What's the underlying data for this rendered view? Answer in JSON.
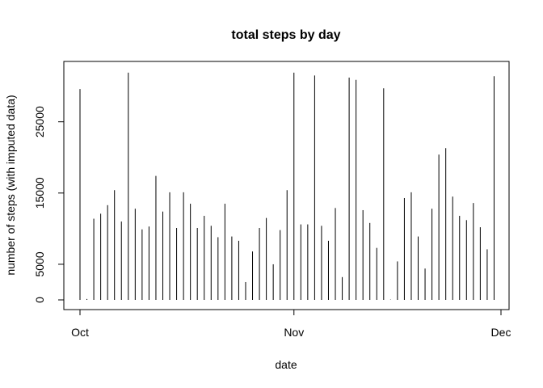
{
  "chart_data": {
    "type": "bar",
    "style": "histogram-spikes",
    "title": "total steps by day",
    "xlabel": "date",
    "ylabel": "number of steps (with imputed data)",
    "x_ticks": [
      "Oct",
      "Nov",
      "Dec"
    ],
    "x_tick_dates": [
      "2012-10-01",
      "2012-11-01",
      "2012-12-01"
    ],
    "y_ticks": [
      0,
      5000,
      15000,
      25000
    ],
    "ylim": [
      0,
      32000
    ],
    "xlim": [
      "2012-09-29",
      "2012-12-01"
    ],
    "box": true,
    "grid": false,
    "dates": [
      "2012-10-01",
      "2012-10-02",
      "2012-10-03",
      "2012-10-04",
      "2012-10-05",
      "2012-10-06",
      "2012-10-07",
      "2012-10-08",
      "2012-10-09",
      "2012-10-10",
      "2012-10-11",
      "2012-10-12",
      "2012-10-13",
      "2012-10-14",
      "2012-10-15",
      "2012-10-16",
      "2012-10-17",
      "2012-10-18",
      "2012-10-19",
      "2012-10-20",
      "2012-10-21",
      "2012-10-22",
      "2012-10-23",
      "2012-10-24",
      "2012-10-25",
      "2012-10-26",
      "2012-10-27",
      "2012-10-28",
      "2012-10-29",
      "2012-10-30",
      "2012-10-31",
      "2012-11-01",
      "2012-11-02",
      "2012-11-03",
      "2012-11-04",
      "2012-11-05",
      "2012-11-06",
      "2012-11-07",
      "2012-11-08",
      "2012-11-09",
      "2012-11-10",
      "2012-11-11",
      "2012-11-12",
      "2012-11-13",
      "2012-11-14",
      "2012-11-15",
      "2012-11-16",
      "2012-11-17",
      "2012-11-18",
      "2012-11-19",
      "2012-11-20",
      "2012-11-21",
      "2012-11-22",
      "2012-11-23",
      "2012-11-24",
      "2012-11-25",
      "2012-11-26",
      "2012-11-27",
      "2012-11-28",
      "2012-11-29",
      "2012-11-30"
    ],
    "values": [
      29600,
      130,
      11400,
      12100,
      13300,
      15400,
      11000,
      31900,
      12800,
      9900,
      10300,
      17400,
      12400,
      15100,
      10100,
      15100,
      13500,
      10100,
      11800,
      10400,
      8800,
      13500,
      8900,
      8300,
      2500,
      6800,
      10100,
      11500,
      5000,
      9800,
      15400,
      31900,
      10600,
      10600,
      31500,
      10400,
      8300,
      12900,
      3200,
      31200,
      30900,
      12600,
      10800,
      7300,
      29700,
      40,
      5400,
      14300,
      15100,
      8900,
      4400,
      12800,
      20400,
      21300,
      14500,
      11800,
      11200,
      13600,
      10200,
      7100,
      31400
    ]
  }
}
